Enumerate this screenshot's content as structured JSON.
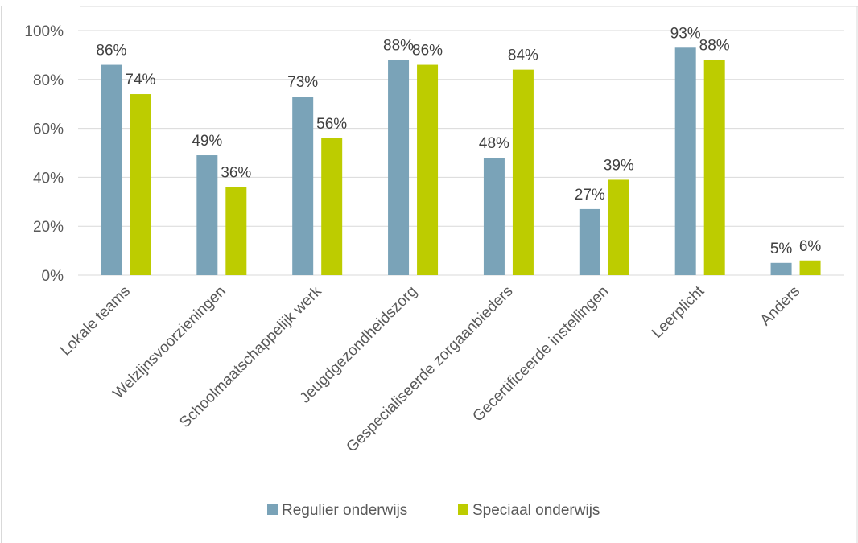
{
  "chart_data": {
    "type": "bar",
    "title": "",
    "xlabel": "",
    "ylabel": "",
    "ylim": [
      0,
      100
    ],
    "y_ticks": [
      0,
      20,
      40,
      60,
      80,
      100
    ],
    "y_tick_suffix": "%",
    "grid": true,
    "legend_position": "bottom",
    "categories": [
      "Lokale teams",
      "Welzijnsvoorzieningen",
      "Schoolmaatschappelijk werk",
      "Jeugdgezondheidszorg",
      "Gespecialiseerde zorgaanbieders",
      "Gecertificeerde instellingen",
      "Leerplicht",
      "Anders"
    ],
    "series": [
      {
        "name": "Regulier onderwijs",
        "color": "#7aa3b8",
        "values": [
          86,
          49,
          73,
          88,
          48,
          27,
          93,
          5
        ],
        "labels": [
          "86%",
          "49%",
          "73%",
          "88%",
          "48%",
          "27%",
          "93%",
          "5%"
        ]
      },
      {
        "name": "Speciaal onderwijs",
        "color": "#bdcc00",
        "values": [
          74,
          36,
          56,
          86,
          84,
          39,
          88,
          6
        ],
        "labels": [
          "74%",
          "36%",
          "56%",
          "86%",
          "84%",
          "39%",
          "88%",
          "6%"
        ]
      }
    ]
  }
}
